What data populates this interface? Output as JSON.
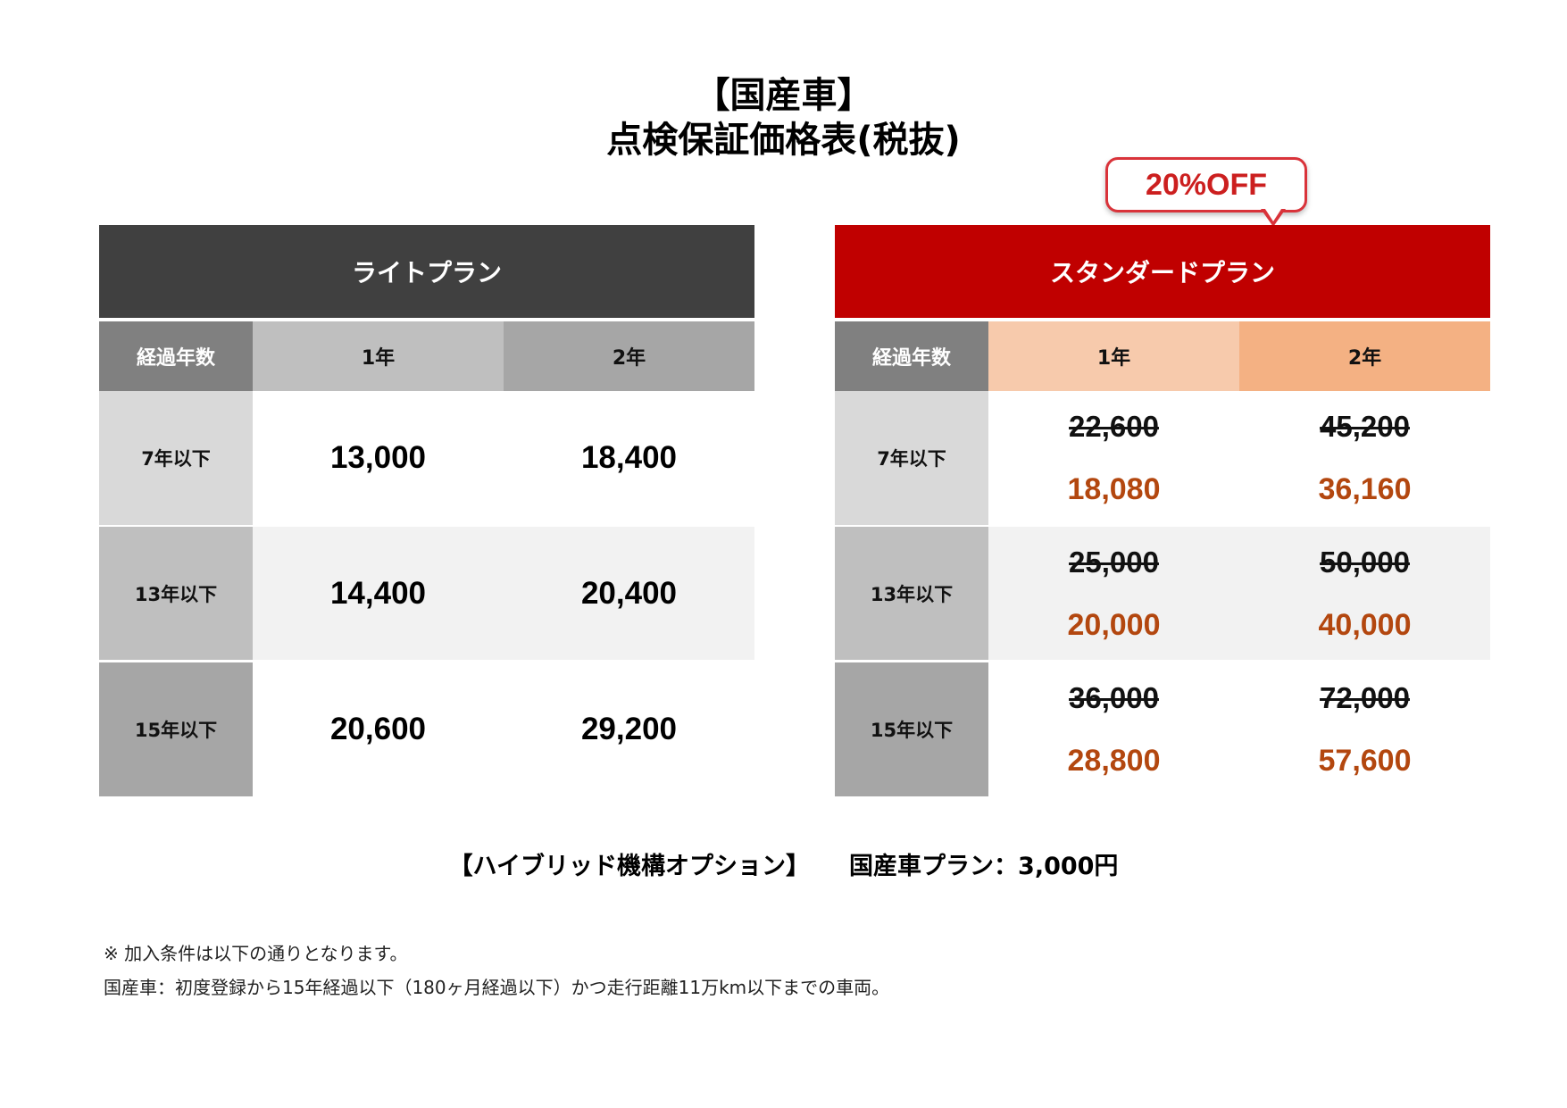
{
  "title": {
    "line1": "【国産車】",
    "line2": "点検保証価格表(税抜)"
  },
  "badge": {
    "label": "20%OFF"
  },
  "colors": {
    "light_header": "#404040",
    "standard_header": "#c00000",
    "new_price": "#b3470f",
    "badge_border": "#d9333a"
  },
  "light_plan": {
    "name": "ライトプラン",
    "col_years": "経過年数",
    "col_1y": "1年",
    "col_2y": "2年",
    "rows": [
      {
        "label": "7年以下",
        "y1": "13,000",
        "y2": "18,400"
      },
      {
        "label": "13年以下",
        "y1": "14,400",
        "y2": "20,400"
      },
      {
        "label": "15年以下",
        "y1": "20,600",
        "y2": "29,200"
      }
    ]
  },
  "standard_plan": {
    "name": "スタンダードプラン",
    "col_years": "経過年数",
    "col_1y": "1年",
    "col_2y": "2年",
    "rows": [
      {
        "label": "7年以下",
        "y1_old": "22,600",
        "y1_new": "18,080",
        "y2_old": "45,200",
        "y2_new": "36,160"
      },
      {
        "label": "13年以下",
        "y1_old": "25,000",
        "y1_new": "20,000",
        "y2_old": "50,000",
        "y2_new": "40,000"
      },
      {
        "label": "15年以下",
        "y1_old": "36,000",
        "y1_new": "28,800",
        "y2_old": "72,000",
        "y2_new": "57,600"
      }
    ]
  },
  "option": {
    "label": "【ハイブリッド機構オプション】",
    "value": "国産車プラン：3,000円"
  },
  "notes": {
    "line1": "※ 加入条件は以下の通りとなります。",
    "line2": "国産車：初度登録から15年経過以下（180ヶ月経過以下）かつ走行距離11万km以下までの車両。"
  }
}
